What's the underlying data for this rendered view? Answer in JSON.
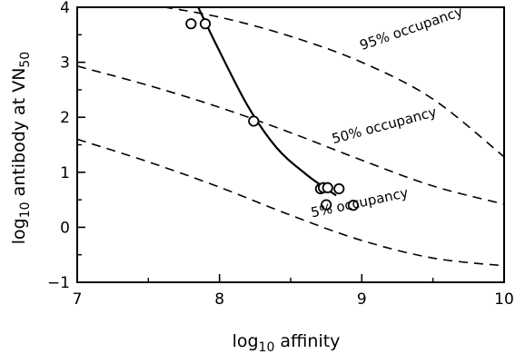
{
  "chart_data": {
    "type": "scatter",
    "xlabel": {
      "prefix": "log",
      "sub": "10",
      "suffix": " affinity"
    },
    "ylabel": {
      "prefix": "log",
      "sub": "10",
      "mid": " antibody at VN",
      "sub2": "50"
    },
    "xlim": [
      7,
      10
    ],
    "ylim": [
      -1,
      4
    ],
    "x_ticks": [
      7,
      8,
      9,
      10
    ],
    "x_tick_labels": [
      "7",
      "8",
      "9",
      "10"
    ],
    "y_ticks": [
      -1,
      0,
      1,
      2,
      3,
      4
    ],
    "y_tick_labels": [
      "−1",
      "0",
      "1",
      "2",
      "3",
      "4"
    ],
    "x_minor_ticks": [
      7.5,
      8.5,
      9.5
    ],
    "y_minor_ticks": [
      -0.5,
      0.5,
      1.5,
      2.5,
      3.5
    ],
    "grid": false,
    "points": [
      {
        "x": 7.8,
        "y": 3.7
      },
      {
        "x": 7.9,
        "y": 3.7
      },
      {
        "x": 8.24,
        "y": 1.93
      },
      {
        "x": 8.71,
        "y": 0.7
      },
      {
        "x": 8.73,
        "y": 0.72
      },
      {
        "x": 8.76,
        "y": 0.72
      },
      {
        "x": 8.75,
        "y": 0.41
      },
      {
        "x": 8.84,
        "y": 0.7
      },
      {
        "x": 8.94,
        "y": 0.4
      }
    ],
    "fit_curve": {
      "style": "solid",
      "points": [
        [
          7.85,
          4.0
        ],
        [
          8.0,
          3.2
        ],
        [
          8.2,
          2.2
        ],
        [
          8.4,
          1.45
        ],
        [
          8.6,
          0.98
        ],
        [
          8.75,
          0.7
        ],
        [
          8.82,
          0.58
        ]
      ]
    },
    "occupancy_curves": [
      {
        "label": "95% occupancy",
        "style": "dashed",
        "points": [
          [
            7.5,
            4.05
          ],
          [
            8.0,
            3.82
          ],
          [
            8.5,
            3.47
          ],
          [
            9.0,
            3.0
          ],
          [
            9.5,
            2.33
          ],
          [
            10.0,
            1.28
          ]
        ]
      },
      {
        "label": "50% occupancy",
        "style": "dashed",
        "points": [
          [
            7.0,
            2.93
          ],
          [
            7.5,
            2.58
          ],
          [
            8.0,
            2.18
          ],
          [
            8.5,
            1.72
          ],
          [
            9.0,
            1.22
          ],
          [
            9.5,
            0.75
          ],
          [
            10.0,
            0.42
          ]
        ]
      },
      {
        "label": "5% occupancy",
        "style": "dashed",
        "points": [
          [
            7.0,
            1.6
          ],
          [
            7.5,
            1.19
          ],
          [
            8.0,
            0.73
          ],
          [
            8.5,
            0.22
          ],
          [
            9.0,
            -0.24
          ],
          [
            9.5,
            -0.56
          ],
          [
            10.0,
            -0.7
          ]
        ]
      }
    ]
  }
}
